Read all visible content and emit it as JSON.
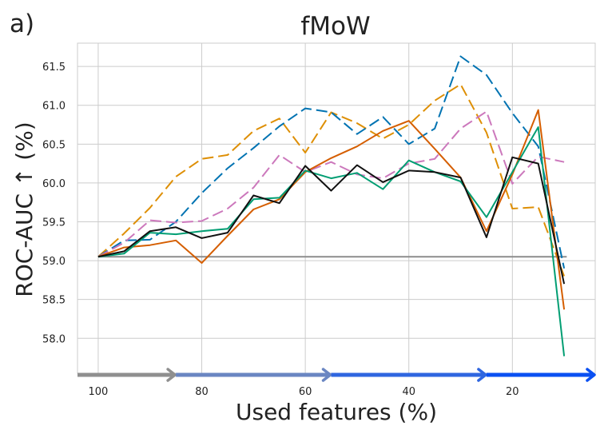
{
  "panel_label": "a)",
  "chart_data": {
    "type": "line",
    "title": "fMoW",
    "xlabel": "Used features (%)",
    "ylabel": "ROC-AUC  ↑  (%)",
    "xlim": [
      104,
      4
    ],
    "ylim": [
      57.55,
      61.8
    ],
    "x_reversed": true,
    "x_ticks": [
      100,
      80,
      60,
      40,
      20
    ],
    "y_ticks": [
      58.0,
      58.5,
      59.0,
      59.5,
      60.0,
      60.5,
      61.0,
      61.5
    ],
    "grid": true,
    "legend": "none",
    "baseline": {
      "value": 59.05,
      "color": "#8c8c8c"
    },
    "series": [
      {
        "color": "#de8f05",
        "dash": "dashed",
        "x": [
          100,
          95,
          90,
          85,
          80,
          75,
          70,
          65,
          60,
          55,
          50,
          45,
          40,
          35,
          30,
          25,
          20,
          15,
          10
        ],
        "y": [
          59.05,
          59.35,
          59.68,
          60.08,
          60.31,
          60.36,
          60.67,
          60.83,
          60.39,
          60.91,
          60.77,
          60.57,
          60.75,
          61.06,
          61.27,
          60.65,
          59.67,
          59.69,
          58.8
        ]
      },
      {
        "color": "#0173b2",
        "dash": "dashed",
        "x": [
          100,
          95,
          90,
          85,
          80,
          75,
          70,
          65,
          60,
          55,
          50,
          45,
          40,
          35,
          30,
          25,
          20,
          15,
          10
        ],
        "y": [
          59.05,
          59.26,
          59.27,
          59.5,
          59.87,
          60.19,
          60.45,
          60.73,
          60.96,
          60.91,
          60.63,
          60.85,
          60.5,
          60.7,
          61.63,
          61.39,
          60.9,
          60.47,
          58.9
        ]
      },
      {
        "color": "#cc78bc",
        "dash": "dashed",
        "x": [
          100,
          95,
          90,
          85,
          80,
          75,
          70,
          65,
          60,
          55,
          50,
          45,
          40,
          35,
          30,
          25,
          20,
          15,
          10
        ],
        "y": [
          59.05,
          59.23,
          59.52,
          59.49,
          59.51,
          59.67,
          59.94,
          60.36,
          60.14,
          60.27,
          60.11,
          60.06,
          60.25,
          60.31,
          60.7,
          60.92,
          59.99,
          60.34,
          60.27
        ]
      },
      {
        "color": "#d55e00",
        "dash": "solid",
        "x": [
          100,
          95,
          90,
          85,
          80,
          75,
          70,
          65,
          60,
          55,
          50,
          45,
          40,
          35,
          30,
          25,
          20,
          15,
          10
        ],
        "y": [
          59.05,
          59.17,
          59.2,
          59.26,
          58.97,
          59.32,
          59.66,
          59.79,
          60.14,
          60.32,
          60.47,
          60.67,
          60.8,
          60.44,
          60.07,
          59.38,
          60.11,
          60.94,
          58.37
        ]
      },
      {
        "color": "#029e73",
        "dash": "solid",
        "x": [
          100,
          95,
          90,
          85,
          80,
          75,
          70,
          65,
          60,
          55,
          50,
          45,
          40,
          35,
          30,
          25,
          20,
          15,
          10
        ],
        "y": [
          59.05,
          59.09,
          59.36,
          59.34,
          59.38,
          59.41,
          59.79,
          59.81,
          60.16,
          60.06,
          60.13,
          59.92,
          60.29,
          60.14,
          60.02,
          59.56,
          60.14,
          60.72,
          57.77
        ]
      },
      {
        "color": "#111111",
        "dash": "solid",
        "x": [
          100,
          95,
          90,
          85,
          80,
          75,
          70,
          65,
          60,
          55,
          50,
          45,
          40,
          35,
          30,
          25,
          20,
          15,
          10
        ],
        "y": [
          59.05,
          59.12,
          59.38,
          59.43,
          59.29,
          59.36,
          59.84,
          59.74,
          60.22,
          59.9,
          60.23,
          60.01,
          60.16,
          60.14,
          60.07,
          59.3,
          60.33,
          60.25,
          58.7
        ]
      }
    ],
    "progress_arrow": {
      "segments": [
        {
          "from": 104,
          "to": 85,
          "color": "#8f8f8f"
        },
        {
          "from": 85,
          "to": 55,
          "color": "#6a86c2"
        },
        {
          "from": 55,
          "to": 25,
          "color": "#2f66e0"
        },
        {
          "from": 25,
          "to": 4,
          "color": "#0a50f2"
        }
      ]
    }
  }
}
